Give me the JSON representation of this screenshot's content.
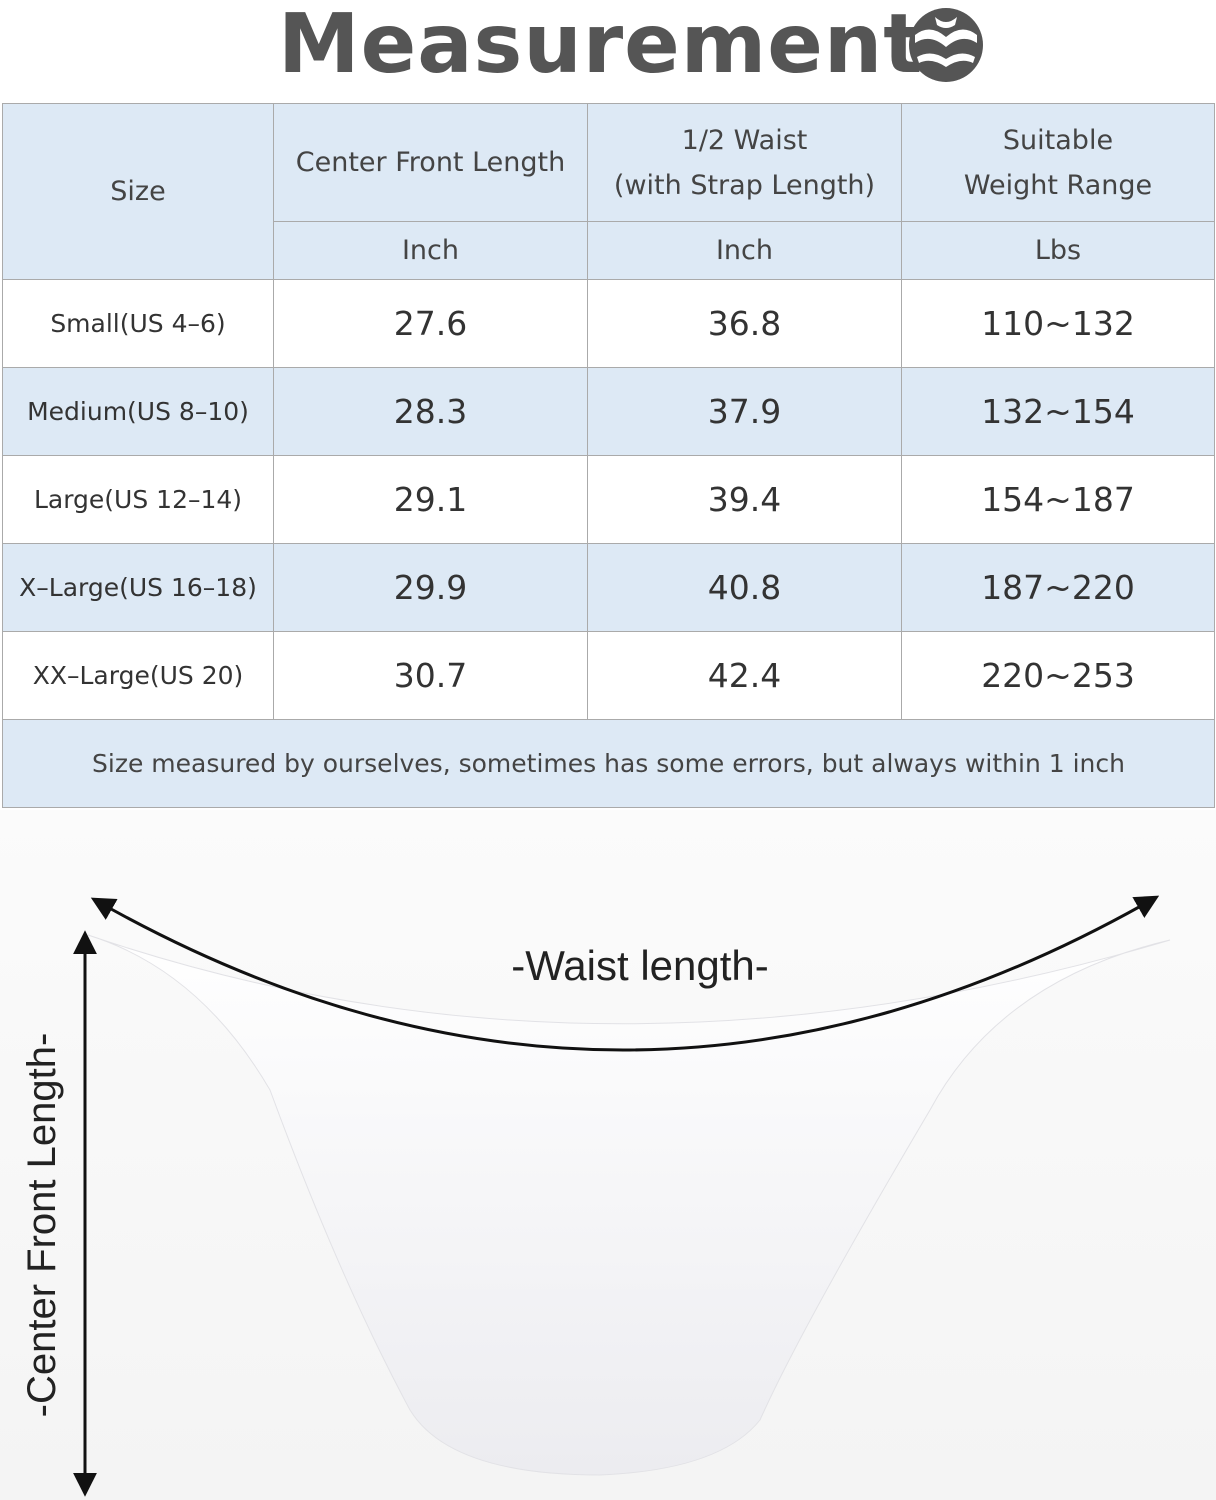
{
  "header": {
    "title": "Measurement"
  },
  "table": {
    "headers": [
      "Size",
      "Center Front Length",
      "1/2 Waist\n(with Strap Length)",
      "Suitable\nWeight Range"
    ],
    "units": [
      "Inch",
      "Inch",
      "Lbs"
    ],
    "rows": [
      [
        "Small(US 4–6)",
        "27.6",
        "36.8",
        "110~132"
      ],
      [
        "Medium(US 8–10)",
        "28.3",
        "37.9",
        "132~154"
      ],
      [
        "Large(US 12–14)",
        "29.1",
        "39.4",
        "154~187"
      ],
      [
        "X–Large(US 16–18)",
        "29.9",
        "40.8",
        "187~220"
      ],
      [
        "XX–Large(US 20)",
        "30.7",
        "42.4",
        "220~253"
      ]
    ],
    "note": "Size measured by ourselves, sometimes has some errors, but always within 1 inch"
  },
  "diagram": {
    "waist_label": "-Waist length-",
    "length_label": "-Center Front Length-"
  }
}
